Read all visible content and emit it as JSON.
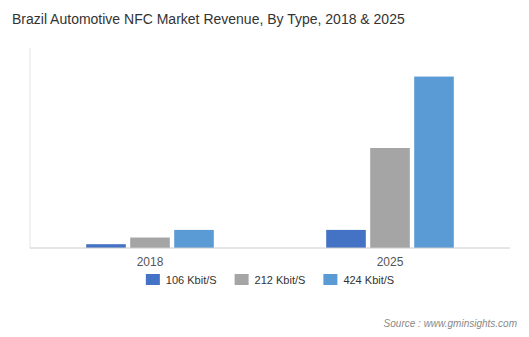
{
  "chart_data": {
    "type": "bar",
    "title": "Brazil Automotive NFC Market Revenue, By Type, 2018 & 2025",
    "categories": [
      "2018",
      "2025"
    ],
    "series": [
      {
        "name": "106 Kbit/S",
        "color": "#4472c4",
        "values": [
          0.008,
          0.038
        ]
      },
      {
        "name": "212 Kbit/S",
        "color": "#a5a5a5",
        "values": [
          0.022,
          0.21
        ]
      },
      {
        "name": "424 Kbit/S",
        "color": "#5b9bd5",
        "values": [
          0.038,
          0.36
        ]
      }
    ],
    "ylim": [
      0,
      0.42
    ],
    "grid": false,
    "legend": "bottom",
    "tick_labels": "x",
    "annotations": [
      "Source : www.gminsights.com"
    ]
  }
}
